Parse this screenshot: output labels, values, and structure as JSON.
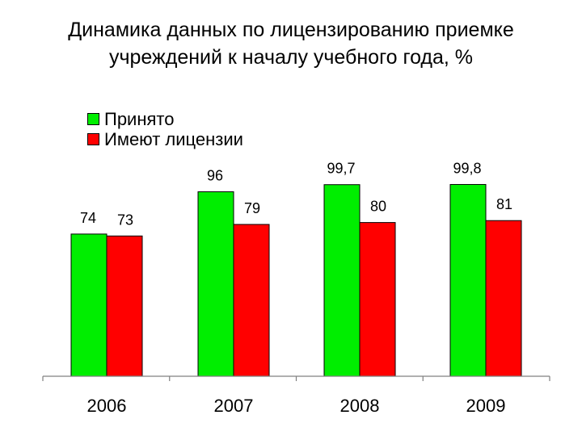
{
  "chart_data": {
    "type": "bar",
    "title": "Динамика данных по лицензированию приемке учреждений к началу учебного года, %",
    "title_lines": [
      "Динамика данных по лицензированию приемке",
      "учреждений к началу учебного года, %"
    ],
    "xlabel": "",
    "ylabel": "",
    "categories": [
      "2006",
      "2007",
      "2008",
      "2009"
    ],
    "series": [
      {
        "name": "Принято",
        "color": "#00ee00",
        "values": [
          74,
          96,
          99.7,
          99.8
        ],
        "labels": [
          "74",
          "96",
          "99,7",
          "99,8"
        ]
      },
      {
        "name": "Имеют лицензии",
        "color": "#ff0000",
        "values": [
          73,
          79,
          80,
          81
        ],
        "labels": [
          "73",
          "79",
          "80",
          "81"
        ]
      }
    ],
    "ylim": [
      0,
      100
    ],
    "grid": false,
    "y_axis_visible": false,
    "legend_position": "top-left"
  }
}
